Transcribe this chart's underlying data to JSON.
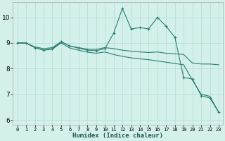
{
  "xlabel": "Humidex (Indice chaleur)",
  "background_color": "#d4f0eb",
  "line_color": "#2a7d6e",
  "grid_color": "#b8ddd7",
  "xlim": [
    -0.5,
    23.5
  ],
  "ylim": [
    5.8,
    10.6
  ],
  "yticks": [
    6,
    7,
    8,
    9,
    10
  ],
  "xticks": [
    0,
    1,
    2,
    3,
    4,
    5,
    6,
    7,
    8,
    9,
    10,
    11,
    12,
    13,
    14,
    15,
    16,
    17,
    18,
    19,
    20,
    21,
    22,
    23
  ],
  "line1_x": [
    0,
    1,
    2,
    3,
    4,
    5,
    6,
    7,
    8,
    9,
    10,
    11,
    12,
    13,
    14,
    15,
    16,
    17,
    18,
    19,
    20,
    21,
    22,
    23
  ],
  "line1_y": [
    9.0,
    9.0,
    8.85,
    8.78,
    8.82,
    9.05,
    8.88,
    8.82,
    8.76,
    8.75,
    8.82,
    8.78,
    8.72,
    8.68,
    8.65,
    8.63,
    8.65,
    8.6,
    8.58,
    8.55,
    8.22,
    8.18,
    8.18,
    8.15
  ],
  "line2_x": [
    0,
    1,
    2,
    3,
    4,
    5,
    6,
    7,
    8,
    9,
    10,
    11,
    12,
    13,
    14,
    15,
    16,
    17,
    18,
    19,
    20,
    21,
    22,
    23
  ],
  "line2_y": [
    9.0,
    9.0,
    8.82,
    8.72,
    8.78,
    9.05,
    8.88,
    8.8,
    8.72,
    8.7,
    8.78,
    9.38,
    10.35,
    9.55,
    9.6,
    9.55,
    10.0,
    9.65,
    9.22,
    7.65,
    7.6,
    6.95,
    6.85,
    6.3
  ],
  "line3_x": [
    0,
    1,
    2,
    3,
    4,
    5,
    6,
    7,
    8,
    9,
    10,
    11,
    12,
    13,
    14,
    15,
    16,
    17,
    18,
    19,
    20,
    21,
    22,
    23
  ],
  "line3_y": [
    9.0,
    9.0,
    8.82,
    8.72,
    8.76,
    9.0,
    8.8,
    8.72,
    8.64,
    8.6,
    8.65,
    8.55,
    8.48,
    8.42,
    8.38,
    8.35,
    8.3,
    8.25,
    8.2,
    8.15,
    7.55,
    7.0,
    6.92,
    6.3
  ]
}
